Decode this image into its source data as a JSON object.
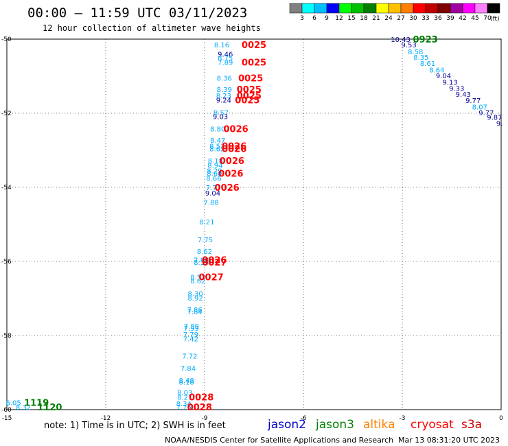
{
  "title": "00:00 – 11:59 UTC 03/11/2023",
  "subtitle": "12 hour collection of altimeter wave heights",
  "colorbar": {
    "unit": "(ft)",
    "colors": [
      "#808080",
      "#00ffff",
      "#00bfff",
      "#0000ff",
      "#00ff00",
      "#00c000",
      "#008000",
      "#ffff00",
      "#ffc000",
      "#ff8000",
      "#ff0000",
      "#c00000",
      "#800000",
      "#a000a0",
      "#ff00ff",
      "#ff80ff",
      "#000000"
    ],
    "labels": [
      "3",
      "6",
      "9",
      "12",
      "15",
      "18",
      "21",
      "24",
      "27",
      "30",
      "33",
      "36",
      "39",
      "42",
      "45",
      "70"
    ]
  },
  "note": "note: 1) Time is in UTC; 2) SWH is in feet",
  "satellites": [
    {
      "name": "jason2",
      "color": "#0000cc"
    },
    {
      "name": "jason3",
      "color": "#008000"
    },
    {
      "name": "altika",
      "color": "#ff8000"
    },
    {
      "name": "cryosat",
      "color": "#ff0000"
    },
    {
      "name": "s3a",
      "color": "#cc0000"
    }
  ],
  "credit": "NOAA/NESDIS Center for Satellite Applications and Research",
  "timestamp": "Mar 13 08:31:20 UTC 2023",
  "chart_data": {
    "type": "scatter",
    "xlim": [
      -15,
      0
    ],
    "ylim": [
      -60,
      -50
    ],
    "x_ticks": [
      -15,
      -12,
      -9,
      -6,
      -3,
      0
    ],
    "y_ticks": [
      -50,
      -52,
      -54,
      -56,
      -58,
      -60
    ],
    "grid": true,
    "wave_heights": [
      {
        "lon": -8.48,
        "lat": -50.15,
        "value": "8.16",
        "color": "#00aaff"
      },
      {
        "lon": -8.37,
        "lat": -50.4,
        "value": "9.46",
        "color": "#000099"
      },
      {
        "lon": -8.37,
        "lat": -50.5,
        "value": "8.75",
        "color": "#00aaff"
      },
      {
        "lon": -8.37,
        "lat": -50.62,
        "value": "7.89",
        "color": "#00aaff"
      },
      {
        "lon": -8.4,
        "lat": -51.05,
        "value": "8.36",
        "color": "#00aaff"
      },
      {
        "lon": -8.4,
        "lat": -51.35,
        "value": "8.39",
        "color": "#00aaff"
      },
      {
        "lon": -8.42,
        "lat": -51.52,
        "value": "8.23",
        "color": "#00aaff"
      },
      {
        "lon": -8.42,
        "lat": -51.64,
        "value": "9.24",
        "color": "#000099"
      },
      {
        "lon": -8.5,
        "lat": -51.98,
        "value": "8.57",
        "color": "#00aaff"
      },
      {
        "lon": -8.52,
        "lat": -52.08,
        "value": "9.03",
        "color": "#000099"
      },
      {
        "lon": -8.6,
        "lat": -52.42,
        "value": "8.80",
        "color": "#00aaff"
      },
      {
        "lon": -8.6,
        "lat": -52.72,
        "value": "8.47",
        "color": "#00aaff"
      },
      {
        "lon": -8.62,
        "lat": -52.88,
        "value": "8.52",
        "color": "#00aaff"
      },
      {
        "lon": -8.62,
        "lat": -52.95,
        "value": "8.62",
        "color": "#00aaff"
      },
      {
        "lon": -8.67,
        "lat": -53.28,
        "value": "8.18",
        "color": "#00aaff"
      },
      {
        "lon": -8.68,
        "lat": -53.4,
        "value": "8.94",
        "color": "#00aaff"
      },
      {
        "lon": -8.7,
        "lat": -53.55,
        "value": "8.29",
        "color": "#00aaff"
      },
      {
        "lon": -8.7,
        "lat": -53.62,
        "value": "8.60",
        "color": "#00aaff"
      },
      {
        "lon": -8.72,
        "lat": -53.75,
        "value": "8.66",
        "color": "#00aaff"
      },
      {
        "lon": -8.73,
        "lat": -54.0,
        "value": "7.77",
        "color": "#00aaff"
      },
      {
        "lon": -8.75,
        "lat": -54.15,
        "value": "9.04",
        "color": "#000099"
      },
      {
        "lon": -8.8,
        "lat": -54.4,
        "value": "7.88",
        "color": "#00aaff"
      },
      {
        "lon": -8.93,
        "lat": -54.93,
        "value": "8.21",
        "color": "#00aaff"
      },
      {
        "lon": -8.98,
        "lat": -55.41,
        "value": "7.75",
        "color": "#00aaff"
      },
      {
        "lon": -9.0,
        "lat": -55.72,
        "value": "8.62",
        "color": "#00aaff"
      },
      {
        "lon": -9.1,
        "lat": -55.95,
        "value": "7.88",
        "color": "#00aaff"
      },
      {
        "lon": -9.1,
        "lat": -56.02,
        "value": "8.35",
        "color": "#00aaff"
      },
      {
        "lon": -9.2,
        "lat": -56.42,
        "value": "8.52",
        "color": "#00aaff"
      },
      {
        "lon": -9.2,
        "lat": -56.52,
        "value": "8.62",
        "color": "#00aaff"
      },
      {
        "lon": -9.28,
        "lat": -56.86,
        "value": "8.30",
        "color": "#00aaff"
      },
      {
        "lon": -9.28,
        "lat": -56.98,
        "value": "8.92",
        "color": "#00aaff"
      },
      {
        "lon": -9.3,
        "lat": -57.3,
        "value": "7.86",
        "color": "#00aaff"
      },
      {
        "lon": -9.3,
        "lat": -57.35,
        "value": "7.84",
        "color": "#00aaff"
      },
      {
        "lon": -9.4,
        "lat": -57.74,
        "value": "7.89",
        "color": "#00aaff"
      },
      {
        "lon": -9.4,
        "lat": -57.8,
        "value": "7.99",
        "color": "#00aaff"
      },
      {
        "lon": -9.42,
        "lat": -57.96,
        "value": "7.79",
        "color": "#00aaff"
      },
      {
        "lon": -9.42,
        "lat": -58.08,
        "value": "7.42",
        "color": "#00aaff"
      },
      {
        "lon": -9.45,
        "lat": -58.55,
        "value": "7.72",
        "color": "#00aaff"
      },
      {
        "lon": -9.5,
        "lat": -58.88,
        "value": "7.84",
        "color": "#00aaff"
      },
      {
        "lon": -9.55,
        "lat": -59.2,
        "value": "8.48",
        "color": "#00aaff"
      },
      {
        "lon": -9.55,
        "lat": -59.25,
        "value": "8.18",
        "color": "#00aaff"
      },
      {
        "lon": -9.6,
        "lat": -59.53,
        "value": "8.03",
        "color": "#00aaff"
      },
      {
        "lon": -9.6,
        "lat": -59.66,
        "value": "8.21",
        "color": "#00aaff"
      },
      {
        "lon": -9.63,
        "lat": -59.83,
        "value": "8.34",
        "color": "#00aaff"
      },
      {
        "lon": -9.63,
        "lat": -59.93,
        "value": "7.76",
        "color": "#00aaff"
      },
      {
        "lon": -14.8,
        "lat": -59.81,
        "value": "6.05",
        "color": "#00aaff"
      },
      {
        "lon": -14.5,
        "lat": -59.93,
        "value": "8.32",
        "color": "#00aaff"
      },
      {
        "lon": -3.05,
        "lat": -50.0,
        "value": "10.43",
        "color": "#000099"
      },
      {
        "lon": -2.8,
        "lat": -50.15,
        "value": "9.53",
        "color": "#000099"
      },
      {
        "lon": -2.6,
        "lat": -50.33,
        "value": "8.58",
        "color": "#00aaff"
      },
      {
        "lon": -2.43,
        "lat": -50.48,
        "value": "8.35",
        "color": "#00aaff"
      },
      {
        "lon": -2.23,
        "lat": -50.65,
        "value": "8.61",
        "color": "#00aaff"
      },
      {
        "lon": -1.95,
        "lat": -50.82,
        "value": "8.64",
        "color": "#00aaff"
      },
      {
        "lon": -1.75,
        "lat": -50.98,
        "value": "9.04",
        "color": "#000099"
      },
      {
        "lon": -1.55,
        "lat": -51.16,
        "value": "9.13",
        "color": "#000099"
      },
      {
        "lon": -1.35,
        "lat": -51.32,
        "value": "9.33",
        "color": "#000099"
      },
      {
        "lon": -1.15,
        "lat": -51.48,
        "value": "9.43",
        "color": "#000099"
      },
      {
        "lon": -0.85,
        "lat": -51.65,
        "value": "9.77",
        "color": "#000099"
      },
      {
        "lon": -0.65,
        "lat": -51.82,
        "value": "8.07",
        "color": "#00aaff"
      },
      {
        "lon": -0.45,
        "lat": -51.98,
        "value": "9.77",
        "color": "#000099"
      },
      {
        "lon": -0.2,
        "lat": -52.1,
        "value": "9.87",
        "color": "#000099"
      },
      {
        "lon": -0.05,
        "lat": -52.27,
        "value": "9.",
        "color": "#000099"
      }
    ],
    "pass_times": [
      {
        "lon": -7.5,
        "lat": -50.15,
        "value": "0025",
        "color": "#ff0000"
      },
      {
        "lon": -7.5,
        "lat": -50.62,
        "value": "0025",
        "color": "#ff0000"
      },
      {
        "lon": -7.6,
        "lat": -51.05,
        "value": "0025",
        "color": "#ff0000"
      },
      {
        "lon": -7.65,
        "lat": -51.35,
        "value": "0025",
        "color": "#ff0000"
      },
      {
        "lon": -7.65,
        "lat": -51.52,
        "value": "0025",
        "color": "#ff0000"
      },
      {
        "lon": -7.7,
        "lat": -51.64,
        "value": "0025",
        "color": "#ff0000"
      },
      {
        "lon": -8.05,
        "lat": -52.42,
        "value": "0026",
        "color": "#ff0000"
      },
      {
        "lon": -8.1,
        "lat": -52.88,
        "value": "0026",
        "color": "#ff0000"
      },
      {
        "lon": -8.1,
        "lat": -52.95,
        "value": "0026",
        "color": "#ff0000"
      },
      {
        "lon": -8.17,
        "lat": -53.28,
        "value": "0026",
        "color": "#ff0000"
      },
      {
        "lon": -8.2,
        "lat": -53.62,
        "value": "0026",
        "color": "#ff0000"
      },
      {
        "lon": -8.32,
        "lat": -54.0,
        "value": "0026",
        "color": "#ff0000"
      },
      {
        "lon": -8.7,
        "lat": -55.95,
        "value": "0026",
        "color": "#ff0000"
      },
      {
        "lon": -8.7,
        "lat": -56.02,
        "value": "0027",
        "color": "#ff0000"
      },
      {
        "lon": -8.8,
        "lat": -56.42,
        "value": "0027",
        "color": "#ff0000"
      },
      {
        "lon": -9.1,
        "lat": -59.66,
        "value": "0028",
        "color": "#ff0000"
      },
      {
        "lon": -9.15,
        "lat": -59.93,
        "value": "0028",
        "color": "#ff0000"
      },
      {
        "lon": -14.1,
        "lat": -59.81,
        "value": "1119",
        "color": "#008000"
      },
      {
        "lon": -13.7,
        "lat": -59.93,
        "value": "1120",
        "color": "#008000"
      },
      {
        "lon": -2.3,
        "lat": -50.0,
        "value": "0923",
        "color": "#008000"
      }
    ]
  }
}
